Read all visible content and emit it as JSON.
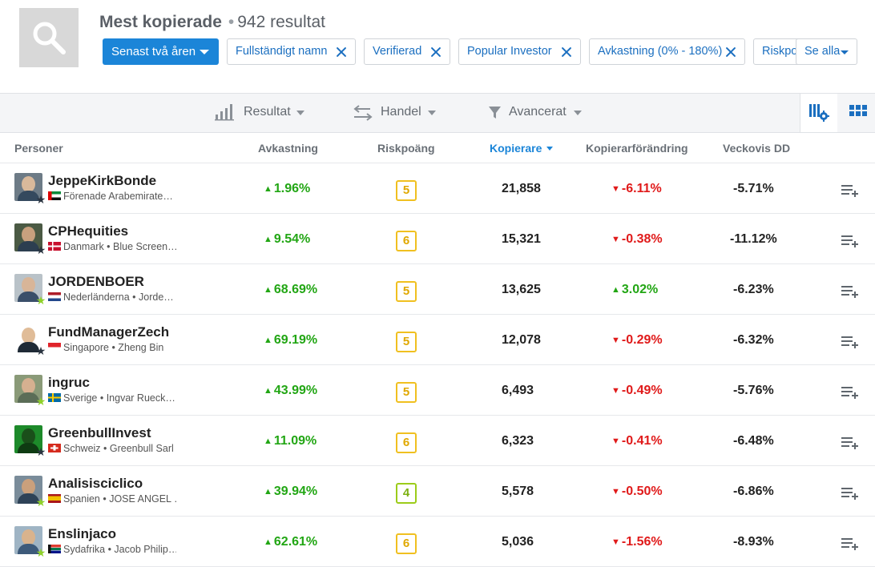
{
  "header": {
    "title": "Mest kopierade",
    "count": "942 resultat",
    "period_button": "Senast två åren",
    "filters": [
      "Fullständigt namn",
      "Verifierad",
      "Popular Investor",
      "Avkastning (0% - 180%)",
      "Riskpoäng"
    ],
    "see_all": "Se alla"
  },
  "toolbar": {
    "results": "Resultat",
    "trading": "Handel",
    "advanced": "Avancerat"
  },
  "columns": {
    "people": "Personer",
    "gain": "Avkastning",
    "risk": "Riskpoäng",
    "copiers": "Kopierare",
    "copiers_change": "Kopierarförändring",
    "weekly_dd": "Veckovis DD"
  },
  "colors": {
    "accent": "#1b85d8",
    "positive": "#22a614",
    "negative": "#e01a1a",
    "risk_yellow": "#f0c020",
    "risk_green": "#9ccc1a"
  },
  "rows": [
    {
      "name": "JeppeKirkBonde",
      "sub": "Förenade Arabemirate…",
      "flag": "ae",
      "star": "dark",
      "gain": "1.96%",
      "gain_dir": "up",
      "risk": "5",
      "risk_color": "yellow",
      "copiers": "21,858",
      "change": "-6.11%",
      "change_dir": "down",
      "dd": "-5.71%"
    },
    {
      "name": "CPHequities",
      "sub": "Danmark • Blue Screen…",
      "flag": "dk",
      "star": "dark",
      "gain": "9.54%",
      "gain_dir": "up",
      "risk": "6",
      "risk_color": "yellow",
      "copiers": "15,321",
      "change": "-0.38%",
      "change_dir": "down",
      "dd": "-11.12%"
    },
    {
      "name": "JORDENBOER",
      "sub": "Nederländerna • Jorde…",
      "flag": "nl",
      "star": "green",
      "gain": "68.69%",
      "gain_dir": "up",
      "risk": "5",
      "risk_color": "yellow",
      "copiers": "13,625",
      "change": "3.02%",
      "change_dir": "up",
      "dd": "-6.23%"
    },
    {
      "name": "FundManagerZech",
      "sub": "Singapore • Zheng Bin",
      "flag": "sg",
      "star": "dark",
      "gain": "69.19%",
      "gain_dir": "up",
      "risk": "5",
      "risk_color": "yellow",
      "copiers": "12,078",
      "change": "-0.29%",
      "change_dir": "down",
      "dd": "-6.32%"
    },
    {
      "name": "ingruc",
      "sub": "Sverige • Ingvar Rueck…",
      "flag": "se",
      "star": "green",
      "gain": "43.99%",
      "gain_dir": "up",
      "risk": "5",
      "risk_color": "yellow",
      "copiers": "6,493",
      "change": "-0.49%",
      "change_dir": "down",
      "dd": "-5.76%"
    },
    {
      "name": "GreenbullInvest",
      "sub": "Schweiz • Greenbull Sarl",
      "flag": "ch",
      "star": "dark",
      "gain": "11.09%",
      "gain_dir": "up",
      "risk": "6",
      "risk_color": "yellow",
      "copiers": "6,323",
      "change": "-0.41%",
      "change_dir": "down",
      "dd": "-6.48%"
    },
    {
      "name": "Analisisciclico",
      "sub": "Spanien • JOSE ANGEL …",
      "flag": "es",
      "star": "green",
      "gain": "39.94%",
      "gain_dir": "up",
      "risk": "4",
      "risk_color": "green",
      "copiers": "5,578",
      "change": "-0.50%",
      "change_dir": "down",
      "dd": "-6.86%"
    },
    {
      "name": "Enslinjaco",
      "sub": "Sydafrika • Jacob Philip…",
      "flag": "za",
      "star": "green",
      "gain": "62.61%",
      "gain_dir": "up",
      "risk": "6",
      "risk_color": "yellow",
      "copiers": "5,036",
      "change": "-1.56%",
      "change_dir": "down",
      "dd": "-8.93%"
    }
  ]
}
